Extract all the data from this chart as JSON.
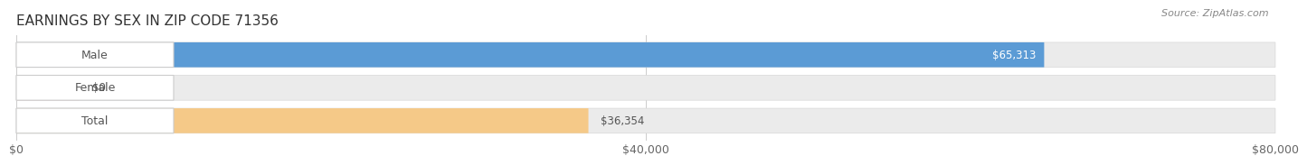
{
  "title": "EARNINGS BY SEX IN ZIP CODE 71356",
  "source": "Source: ZipAtlas.com",
  "categories": [
    "Male",
    "Female",
    "Total"
  ],
  "values": [
    65313,
    0,
    36354
  ],
  "bar_colors": [
    "#5b9bd5",
    "#f4a0b5",
    "#f5c988"
  ],
  "track_color": "#ebebeb",
  "track_border_color": "#d8d8d8",
  "label_bg_color": "#ffffff",
  "label_border_color": "#cccccc",
  "label_text_color": "#555555",
  "value_label_colors": [
    "#ffffff",
    "#555555",
    "#555555"
  ],
  "xlim": [
    0,
    80000
  ],
  "xtick_labels": [
    "$0",
    "$40,000",
    "$80,000"
  ],
  "value_labels": [
    "$65,313",
    "$0",
    "$36,354"
  ],
  "title_fontsize": 11,
  "source_fontsize": 8,
  "tick_fontsize": 9,
  "label_fontsize": 9,
  "value_fontsize": 8.5,
  "background_color": "#ffffff",
  "grid_color": "#cccccc",
  "female_small_val": 4000
}
